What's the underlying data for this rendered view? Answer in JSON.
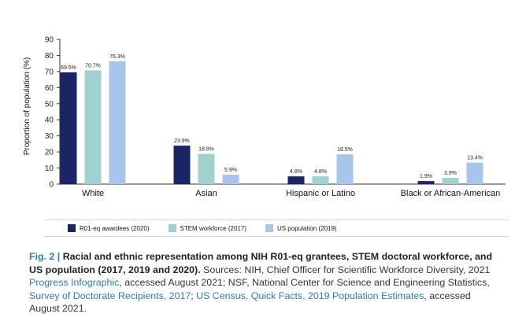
{
  "chart_data": {
    "type": "bar",
    "ylabel": "Proportion of population (%)",
    "xlabel": "",
    "ylim": [
      0,
      90
    ],
    "yticks": [
      "0",
      "10",
      "20",
      "30",
      "40",
      "50",
      "60",
      "70",
      "80",
      "90"
    ],
    "categories": [
      "White",
      "Asian",
      "Hispanic or Latino",
      "Black or African-American"
    ],
    "series": [
      {
        "name": "R01-eq awardees (2020)",
        "color": "#1a2566",
        "values": [
          69.5,
          23.9,
          4.8,
          1.9
        ],
        "labels": [
          "69.5%",
          "23.9%",
          "4.8%",
          "1.9%"
        ]
      },
      {
        "name": "STEM workforce (2017)",
        "color": "#9fd2cf",
        "values": [
          70.7,
          18.8,
          4.8,
          3.9
        ],
        "labels": [
          "70.7%",
          "18.8%",
          "4.8%",
          "3.9%"
        ]
      },
      {
        "name": "US population (2019)",
        "color": "#a8c6ec",
        "values": [
          76.3,
          5.9,
          18.5,
          13.4
        ],
        "labels": [
          "76.3%",
          "5.9%",
          "18.5%",
          "13.4%"
        ]
      }
    ],
    "grid": false,
    "legend_position": "bottom"
  },
  "caption": {
    "fig_label": "Fig. 2 |",
    "title": "Racial and ethnic representation among NIH R01-eq grantees, STEM doctoral workforce, and US population (2017, 2019 and 2020).",
    "sources_prefix": " Sources: NIH, Chief Officer for Scientific Workforce Diversity, 2021 ",
    "link1": "Progress Infographic",
    "text2": ", accessed August 2021; NSF, National Center for Science and Engineering Statistics, ",
    "link2": "Survey of Doctorate Recipients, 2017",
    "text3": "; ",
    "link3": "US Census, Quick Facts, 2019 Population Estimates",
    "text4": ", accessed August 2021."
  }
}
